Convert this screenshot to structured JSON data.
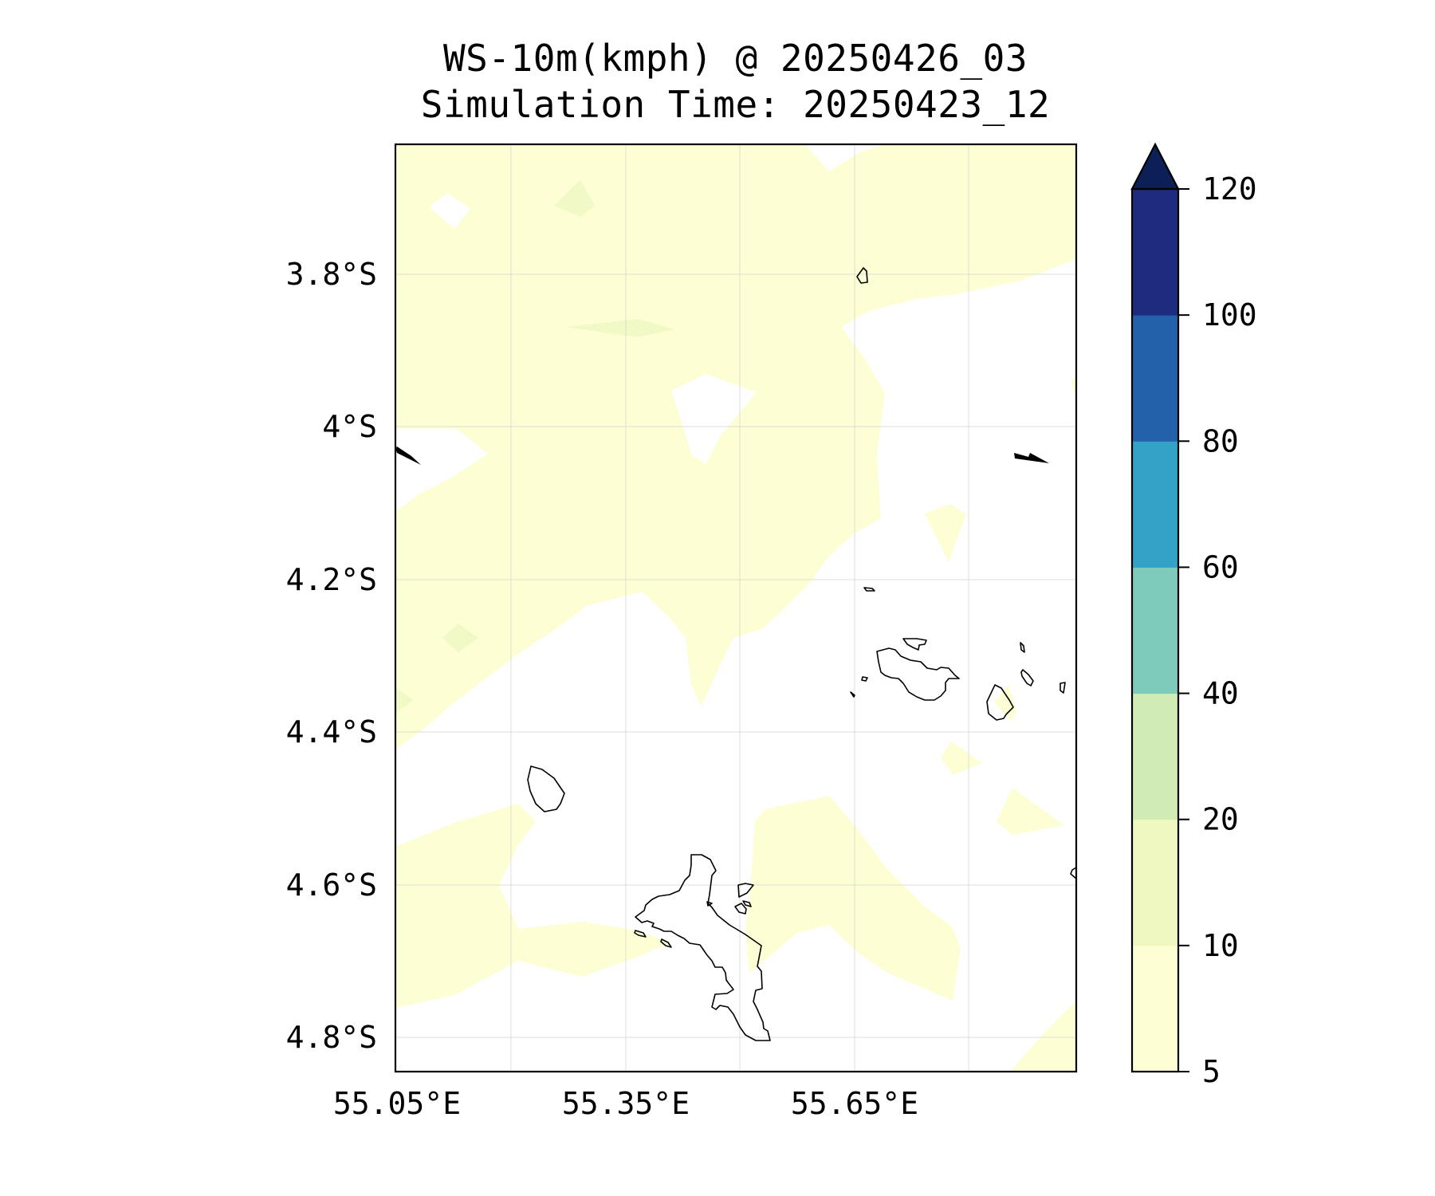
{
  "title": {
    "line1": "WS-10m(kmph) @ 20250426_03",
    "line2": "Simulation Time: 20250423_12"
  },
  "map": {
    "lat_labels": [
      "3.8°S",
      "4°S",
      "4.2°S",
      "4.4°S",
      "4.6°S",
      "4.8°S"
    ],
    "lon_labels": [
      "55.05°E",
      "55.35°E",
      "55.65°E"
    ],
    "gridlines": true,
    "colors": {
      "fill_5_10": "#fdfed4",
      "fill_10_20": "#f1f9c6",
      "coastline": "#000000",
      "arrow": "#000000"
    }
  },
  "colorbar": {
    "labels": [
      "5",
      "10",
      "20",
      "40",
      "60",
      "80",
      "100",
      "120"
    ],
    "levels": [
      5,
      10,
      20,
      40,
      60,
      80,
      100,
      120
    ],
    "colors": [
      "#fdfed4",
      "#eef8c0",
      "#d0ebb3",
      "#7fcbbb",
      "#32a3c6",
      "#2361aa",
      "#1d2c7f"
    ],
    "extend_color": "#0c1f57",
    "extend": "max"
  }
}
